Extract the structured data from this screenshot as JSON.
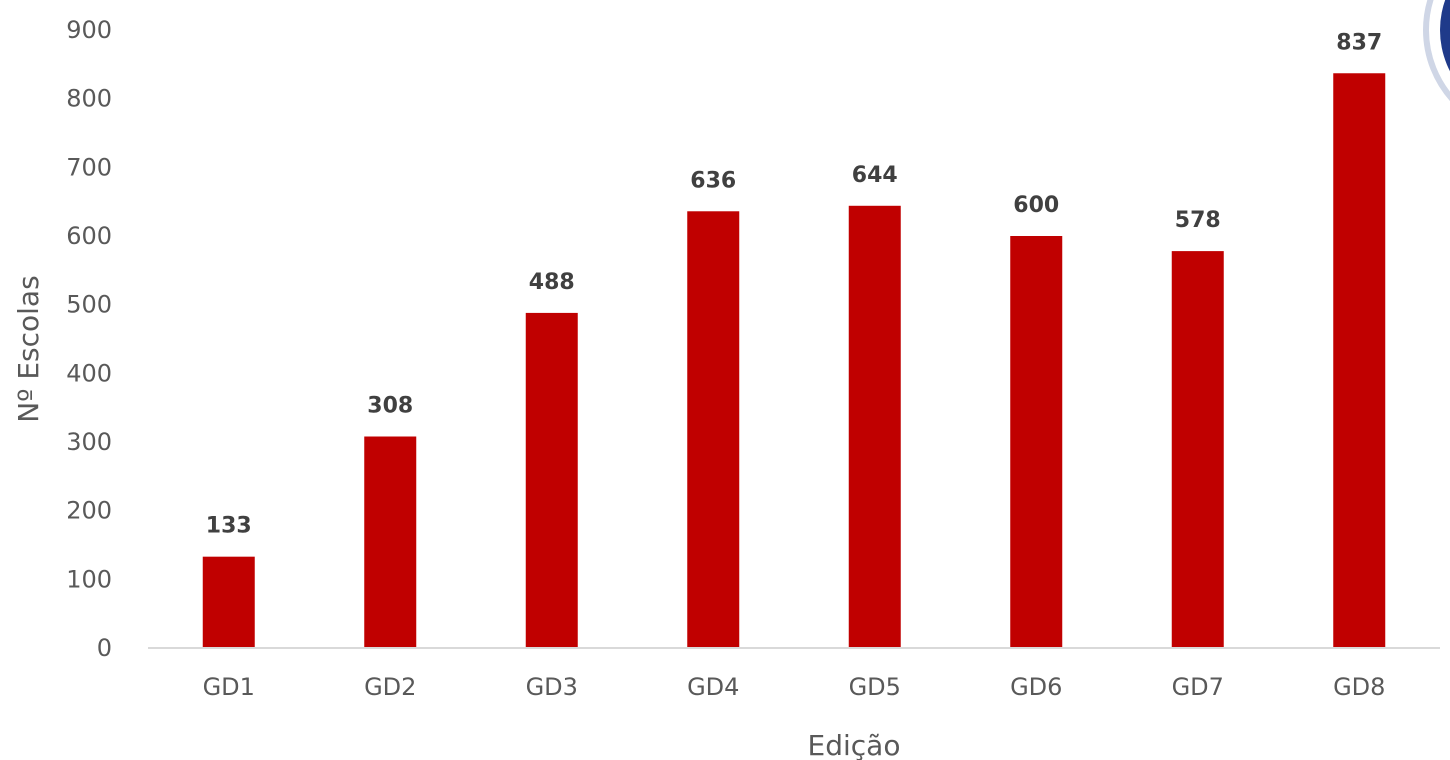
{
  "chart_data": {
    "type": "bar",
    "categories": [
      "GD1",
      "GD2",
      "GD3",
      "GD4",
      "GD5",
      "GD6",
      "GD7",
      "GD8"
    ],
    "values": [
      133,
      308,
      488,
      636,
      644,
      600,
      578,
      837
    ],
    "xlabel": "Edição",
    "ylabel": "Nº Escolas",
    "ylim": [
      0,
      900
    ],
    "yticks": [
      0,
      100,
      200,
      300,
      400,
      500,
      600,
      700,
      800,
      900
    ],
    "grid": false,
    "data_labels": true,
    "bar_color": "#c00000"
  },
  "badge_color": "#1f3a8a"
}
